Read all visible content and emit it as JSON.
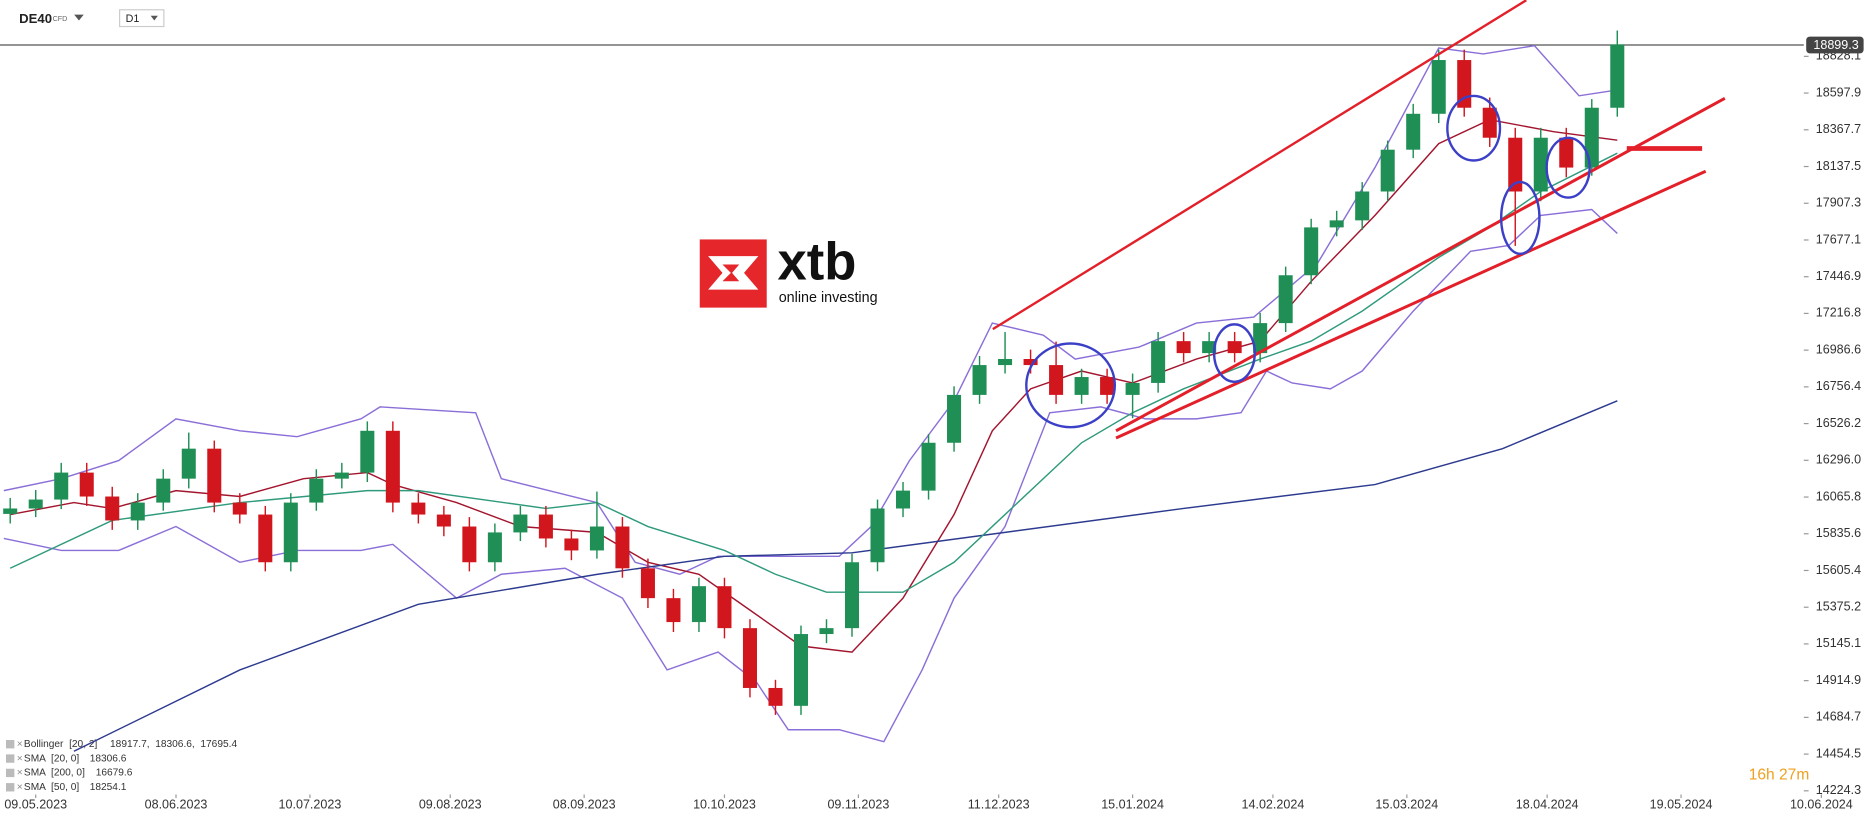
{
  "chart_data": {
    "type": "candlestick",
    "symbol": "DE40",
    "instrument": "CFD",
    "timeframe": "D1",
    "x": [
      -4,
      0,
      4,
      8,
      12,
      16,
      20,
      24,
      28,
      32,
      36,
      40,
      44,
      48,
      52,
      56,
      60,
      64,
      68,
      72,
      76,
      80,
      84,
      88,
      92,
      96,
      100,
      104,
      108,
      112,
      116,
      120,
      124,
      128,
      132,
      136,
      140,
      144,
      148,
      152,
      156,
      160,
      164,
      168,
      172,
      176,
      180,
      184,
      188,
      192,
      196,
      200,
      204,
      208,
      212,
      216,
      220,
      224,
      228,
      232,
      236,
      240,
      244,
      248
    ],
    "open": [
      15960,
      15994,
      16050,
      16219,
      16069,
      15919,
      16031,
      16181,
      16369,
      16031,
      15956,
      15657,
      16031,
      16181,
      16219,
      16481,
      16031,
      15956,
      15881,
      15657,
      15844,
      15956,
      15806,
      15731,
      15881,
      15619,
      15432,
      15282,
      15507,
      15244,
      14869,
      14757,
      15207,
      15244,
      15657,
      15994,
      16106,
      16406,
      16706,
      16893,
      16931,
      16893,
      16706,
      16818,
      16706,
      16781,
      17043,
      16968,
      17043,
      16968,
      17156,
      17456,
      17756,
      17800,
      17981,
      18243,
      18468,
      18805,
      18506,
      18318,
      17981,
      18318,
      18131,
      18506
    ],
    "high": [
      16060,
      16110,
      16280,
      16280,
      16130,
      16090,
      16240,
      16470,
      16420,
      16090,
      16010,
      16090,
      16240,
      16280,
      16540,
      16540,
      16090,
      16010,
      15940,
      15900,
      16010,
      16010,
      15860,
      16100,
      15940,
      15680,
      15490,
      15560,
      15560,
      15300,
      14920,
      15260,
      15300,
      15710,
      16050,
      16160,
      16460,
      16760,
      16950,
      17100,
      16990,
      17040,
      16870,
      16870,
      16840,
      17100,
      17100,
      17100,
      17100,
      17220,
      17510,
      17810,
      17860,
      18040,
      18300,
      18530,
      18870,
      18870,
      18570,
      18380,
      18380,
      18380,
      18560,
      18990
    ],
    "low": [
      15900,
      15940,
      15990,
      16010,
      15860,
      15860,
      15980,
      16120,
      15970,
      15900,
      15600,
      15600,
      15980,
      16120,
      16160,
      15970,
      15900,
      15820,
      15600,
      15600,
      15790,
      15750,
      15670,
      15680,
      15560,
      15370,
      15220,
      15220,
      15180,
      14810,
      14700,
      14700,
      15150,
      15190,
      15600,
      15940,
      16050,
      16350,
      16650,
      16840,
      16840,
      16650,
      16650,
      16650,
      16560,
      16720,
      16910,
      16910,
      16910,
      16910,
      17100,
      17400,
      17700,
      17740,
      17920,
      18190,
      18410,
      18450,
      18260,
      17640,
      17920,
      18070,
      18080,
      18450
    ],
    "close": [
      15994,
      16050,
      16219,
      16069,
      15919,
      16031,
      16181,
      16369,
      16031,
      15956,
      15657,
      16031,
      16181,
      16219,
      16481,
      16031,
      15956,
      15881,
      15657,
      15844,
      15956,
      15806,
      15731,
      15881,
      15619,
      15432,
      15282,
      15507,
      15244,
      14869,
      14757,
      15207,
      15244,
      15657,
      15994,
      16106,
      16406,
      16706,
      16893,
      16931,
      16893,
      16706,
      16818,
      16706,
      16781,
      17043,
      16968,
      17043,
      16968,
      17156,
      17456,
      17756,
      17800,
      17981,
      18243,
      18468,
      18805,
      18506,
      18318,
      17981,
      18318,
      18131,
      18506,
      18903
    ],
    "up_color": "#1f8f55",
    "down_color": "#d2161e",
    "xlim": [
      -5.6,
      287
    ],
    "xticks": [
      {
        "value": 0,
        "label": "09.05.2023"
      },
      {
        "value": 22,
        "label": "08.06.2023"
      },
      {
        "value": 43,
        "label": "10.07.2023"
      },
      {
        "value": 65,
        "label": "09.08.2023"
      },
      {
        "value": 86,
        "label": "08.09.2023"
      },
      {
        "value": 108,
        "label": "10.10.2023"
      },
      {
        "value": 129,
        "label": "09.11.2023"
      },
      {
        "value": 151,
        "label": "11.12.2023"
      },
      {
        "value": 172,
        "label": "15.01.2024"
      },
      {
        "value": 194,
        "label": "14.02.2024"
      },
      {
        "value": 215,
        "label": "15.03.2024"
      },
      {
        "value": 237,
        "label": "18.04.2024"
      },
      {
        "value": 258,
        "label": "19.05.2024"
      },
      {
        "value": 280,
        "label": "10.06.2024"
      }
    ],
    "ylim": [
      14194,
      19180
    ],
    "yticks": [
      18828.1,
      18597.9,
      18367.7,
      18137.5,
      17907.3,
      17677.1,
      17446.9,
      17216.8,
      16986.6,
      16756.4,
      16526.2,
      {
        "value": 16296,
        "label": "16296.0"
      },
      16065.8,
      15835.6,
      15605.4,
      15375.2,
      15145.1,
      14914.9,
      14684.7,
      14454.5,
      14224.3
    ],
    "last_price": 18899.3,
    "overlays": [
      {
        "name": "Bollinger  [20, 2]",
        "readout": "18917.7,  18306.6,  17695.4",
        "color": "#8b6fd8",
        "upper": {
          "x": [
            -5,
            4,
            13,
            22,
            32,
            41,
            51,
            54,
            69,
            73,
            88,
            94,
            101,
            107,
            126,
            131,
            137,
            144,
            150,
            158,
            163,
            173,
            182,
            191,
            201,
            210,
            220,
            227,
            235,
            242,
            248
          ],
          "values": [
            16106,
            16181,
            16294,
            16556,
            16481,
            16444,
            16556,
            16631,
            16594,
            16181,
            16031,
            15657,
            15582,
            15694,
            15694,
            15881,
            16294,
            16669,
            17156,
            17081,
            16931,
            17006,
            17156,
            17194,
            17531,
            18131,
            18880,
            18843,
            18895,
            18581,
            18618
          ]
        },
        "lower": {
          "x": [
            -5,
            4,
            13,
            22,
            32,
            41,
            51,
            56,
            66,
            73,
            83,
            92,
            99,
            107,
            113,
            118,
            126,
            133,
            139,
            144,
            152,
            159,
            167,
            174,
            182,
            189,
            193,
            197,
            203,
            208,
            216,
            225,
            231,
            236,
            244,
            248
          ],
          "values": [
            15806,
            15731,
            15731,
            15881,
            15657,
            15731,
            15731,
            15769,
            15432,
            15582,
            15619,
            15432,
            14982,
            15094,
            14907,
            14607,
            14607,
            14532,
            14982,
            15432,
            15881,
            16594,
            16631,
            16556,
            16556,
            16594,
            16856,
            16781,
            16744,
            16856,
            17231,
            17606,
            17643,
            17831,
            17868,
            17718
          ]
        }
      },
      {
        "name": "SMA  [20, 0]",
        "readout": "18306.6",
        "color": "#a3152e",
        "x": [
          -4,
          6,
          12,
          22,
          32,
          42,
          52,
          56,
          66,
          76,
          88,
          96,
          104,
          112,
          120,
          128,
          136,
          144,
          150,
          156,
          164,
          172,
          182,
          192,
          200,
          210,
          220,
          228,
          238,
          248
        ],
        "values": [
          15956,
          16031,
          15994,
          16106,
          16069,
          16181,
          16219,
          16144,
          16031,
          15881,
          15844,
          15657,
          15582,
          15357,
          15132,
          15094,
          15432,
          15956,
          16481,
          16744,
          16856,
          16781,
          16931,
          17043,
          17418,
          17831,
          18281,
          18431,
          18356,
          18303
        ]
      },
      {
        "name": "SMA  [200, 0]",
        "readout": "16679.6",
        "color": "#2c3a8f",
        "x": [
          6,
          32,
          60,
          88,
          108,
          128,
          152,
          180,
          210,
          230,
          248
        ],
        "values": [
          14472,
          14982,
          15394,
          15581,
          15694,
          15716,
          15844,
          15994,
          16144,
          16369,
          16669
        ]
      },
      {
        "name": "SMA  [50, 0]",
        "readout": "18254.1",
        "color": "#2f9a7c",
        "x": [
          -4,
          12,
          32,
          52,
          60,
          80,
          88,
          96,
          108,
          116,
          124,
          136,
          144,
          152,
          164,
          172,
          180,
          192,
          200,
          208,
          220,
          228,
          236,
          248
        ],
        "values": [
          15619,
          15919,
          16031,
          16106,
          16106,
          15994,
          16031,
          15881,
          15731,
          15582,
          15469,
          15469,
          15657,
          15956,
          16406,
          16594,
          16744,
          16931,
          17043,
          17231,
          17568,
          17756,
          17981,
          18221
        ]
      }
    ],
    "timer": "16h 27m"
  },
  "logo": {
    "name": "xtb",
    "tagline": "online investing"
  }
}
